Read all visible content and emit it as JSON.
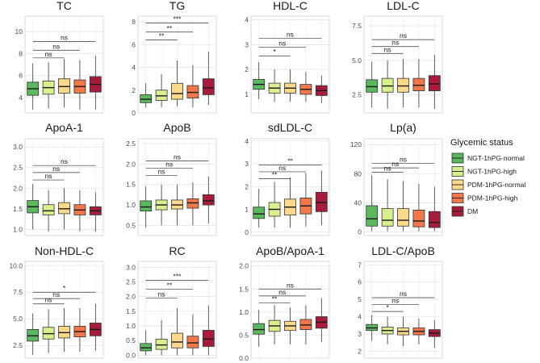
{
  "legend": {
    "title": "Glycemic status",
    "items": [
      {
        "label": "NGT-1hPG-normal",
        "color": "#5BB85F"
      },
      {
        "label": "NGT-1hPG-high",
        "color": "#D9EE8C"
      },
      {
        "label": "PDM-1hPG-normal",
        "color": "#FDD98A"
      },
      {
        "label": "PDM-1hPG-high",
        "color": "#F2774A"
      },
      {
        "label": "DM",
        "color": "#A61C3C"
      }
    ]
  },
  "chart_data": [
    {
      "type": "box",
      "title": "TC",
      "ylim": [
        2.6,
        11.4
      ],
      "ticks": [
        4,
        6,
        8,
        10
      ],
      "tick_labels": [
        "4",
        "6",
        "8",
        "10"
      ],
      "boxes": [
        {
          "group": "NGT-1hPG-normal",
          "low": 2.9,
          "q1": 4.2,
          "median": 4.8,
          "q3": 5.4,
          "high": 7.1
        },
        {
          "group": "NGT-1hPG-high",
          "low": 3.0,
          "q1": 4.3,
          "median": 4.9,
          "q3": 5.5,
          "high": 7.2
        },
        {
          "group": "PDM-1hPG-normal",
          "low": 3.1,
          "q1": 4.4,
          "median": 5.0,
          "q3": 5.7,
          "high": 7.5
        },
        {
          "group": "PDM-1hPG-high",
          "low": 2.9,
          "q1": 4.4,
          "median": 5.0,
          "q3": 5.6,
          "high": 7.4
        },
        {
          "group": "DM",
          "low": 2.9,
          "q1": 4.5,
          "median": 5.2,
          "q3": 5.9,
          "high": 7.8
        }
      ],
      "comparisons": [
        {
          "from": 1,
          "to": 2,
          "label": "ns",
          "y": 7.6
        },
        {
          "from": 1,
          "to": 3,
          "label": "ns",
          "y": 8.3
        },
        {
          "from": 1,
          "to": 4,
          "label": "ns",
          "y": 9.1
        }
      ]
    },
    {
      "type": "box",
      "title": "TG",
      "ylim": [
        0,
        8.5
      ],
      "ticks": [
        0,
        2,
        4,
        6,
        8
      ],
      "tick_labels": [
        "0",
        "2",
        "4",
        "6",
        "8"
      ],
      "boxes": [
        {
          "group": "NGT-1hPG-normal",
          "low": 0.5,
          "q1": 0.9,
          "median": 1.2,
          "q3": 1.6,
          "high": 2.6
        },
        {
          "group": "NGT-1hPG-high",
          "low": 0.5,
          "q1": 1.1,
          "median": 1.5,
          "q3": 2.0,
          "high": 3.4
        },
        {
          "group": "PDM-1hPG-normal",
          "low": 0.6,
          "q1": 1.2,
          "median": 1.7,
          "q3": 2.6,
          "high": 4.6
        },
        {
          "group": "PDM-1hPG-high",
          "low": 0.5,
          "q1": 1.3,
          "median": 1.8,
          "q3": 2.4,
          "high": 4.2
        },
        {
          "group": "DM",
          "low": 0.7,
          "q1": 1.6,
          "median": 2.2,
          "q3": 3.0,
          "high": 5.4
        }
      ],
      "comparisons": [
        {
          "from": 1,
          "to": 2,
          "label": "**",
          "y": 6.4
        },
        {
          "from": 1,
          "to": 3,
          "label": "**",
          "y": 7.1
        },
        {
          "from": 1,
          "to": 4,
          "label": "***",
          "y": 7.9
        }
      ]
    },
    {
      "type": "box",
      "title": "HDL-C",
      "ylim": [
        0.25,
        4.15
      ],
      "ticks": [
        1,
        2,
        3,
        4
      ],
      "tick_labels": [
        "1",
        "2",
        "3",
        "4"
      ],
      "boxes": [
        {
          "group": "NGT-1hPG-normal",
          "low": 0.8,
          "q1": 1.2,
          "median": 1.4,
          "q3": 1.6,
          "high": 2.3
        },
        {
          "group": "NGT-1hPG-high",
          "low": 0.7,
          "q1": 1.05,
          "median": 1.25,
          "q3": 1.45,
          "high": 2.0
        },
        {
          "group": "PDM-1hPG-normal",
          "low": 0.7,
          "q1": 1.05,
          "median": 1.25,
          "q3": 1.45,
          "high": 2.0
        },
        {
          "group": "PDM-1hPG-high",
          "low": 0.7,
          "q1": 1.0,
          "median": 1.2,
          "q3": 1.4,
          "high": 1.9
        },
        {
          "group": "DM",
          "low": 0.65,
          "q1": 0.95,
          "median": 1.15,
          "q3": 1.35,
          "high": 1.75
        }
      ],
      "comparisons": [
        {
          "from": 1,
          "to": 2,
          "label": "*",
          "y": 2.55
        },
        {
          "from": 1,
          "to": 3,
          "label": "ns",
          "y": 2.9
        },
        {
          "from": 1,
          "to": 4,
          "label": "ns",
          "y": 3.25
        }
      ]
    },
    {
      "type": "box",
      "title": "LDL-C",
      "ylim": [
        1.2,
        8.2
      ],
      "ticks": [
        2.5,
        5.0,
        7.5
      ],
      "tick_labels": [
        "2.5",
        "5.0",
        "7.5"
      ],
      "boxes": [
        {
          "group": "NGT-1hPG-normal",
          "low": 1.6,
          "q1": 2.7,
          "median": 3.1,
          "q3": 3.6,
          "high": 4.9
        },
        {
          "group": "NGT-1hPG-high",
          "low": 1.5,
          "q1": 2.7,
          "median": 3.15,
          "q3": 3.7,
          "high": 5.0
        },
        {
          "group": "PDM-1hPG-normal",
          "low": 1.6,
          "q1": 2.7,
          "median": 3.15,
          "q3": 3.7,
          "high": 5.1
        },
        {
          "group": "PDM-1hPG-high",
          "low": 1.6,
          "q1": 2.8,
          "median": 3.2,
          "q3": 3.7,
          "high": 5.1
        },
        {
          "group": "DM",
          "low": 1.5,
          "q1": 2.8,
          "median": 3.3,
          "q3": 3.9,
          "high": 5.4
        }
      ],
      "comparisons": [
        {
          "from": 1,
          "to": 2,
          "label": "ns",
          "y": 5.5
        },
        {
          "from": 1,
          "to": 3,
          "label": "ns",
          "y": 6.0
        },
        {
          "from": 1,
          "to": 4,
          "label": "ns",
          "y": 6.5
        }
      ]
    },
    {
      "type": "box",
      "title": "ApoA-1",
      "ylim": [
        0.85,
        3.2
      ],
      "ticks": [
        1.0,
        1.5,
        2.0,
        2.5,
        3.0
      ],
      "tick_labels": [
        "1.0",
        "1.5",
        "2.0",
        "2.5",
        "3.0"
      ],
      "boxes": [
        {
          "group": "NGT-1hPG-normal",
          "low": 1.0,
          "q1": 1.4,
          "median": 1.55,
          "q3": 1.7,
          "high": 2.1
        },
        {
          "group": "NGT-1hPG-high",
          "low": 0.95,
          "q1": 1.35,
          "median": 1.45,
          "q3": 1.6,
          "high": 1.95
        },
        {
          "group": "PDM-1hPG-normal",
          "low": 1.0,
          "q1": 1.38,
          "median": 1.5,
          "q3": 1.65,
          "high": 2.0
        },
        {
          "group": "PDM-1hPG-high",
          "low": 0.95,
          "q1": 1.35,
          "median": 1.47,
          "q3": 1.6,
          "high": 1.95
        },
        {
          "group": "DM",
          "low": 0.95,
          "q1": 1.35,
          "median": 1.45,
          "q3": 1.55,
          "high": 1.9
        }
      ],
      "comparisons": [
        {
          "from": 1,
          "to": 2,
          "label": "ns",
          "y": 2.2
        },
        {
          "from": 1,
          "to": 3,
          "label": "ns",
          "y": 2.38
        },
        {
          "from": 1,
          "to": 4,
          "label": "ns",
          "y": 2.55
        }
      ]
    },
    {
      "type": "box",
      "title": "ApoB",
      "ylim": [
        0.25,
        2.62
      ],
      "ticks": [
        0.5,
        1.0,
        1.5,
        2.0,
        2.5
      ],
      "tick_labels": [
        "0.5",
        "1.0",
        "1.5",
        "2.0",
        "2.5"
      ],
      "boxes": [
        {
          "group": "NGT-1hPG-normal",
          "low": 0.45,
          "q1": 0.85,
          "median": 0.95,
          "q3": 1.1,
          "high": 1.45
        },
        {
          "group": "NGT-1hPG-high",
          "low": 0.5,
          "q1": 0.88,
          "median": 1.0,
          "q3": 1.12,
          "high": 1.5
        },
        {
          "group": "PDM-1hPG-normal",
          "low": 0.5,
          "q1": 0.9,
          "median": 1.0,
          "q3": 1.12,
          "high": 1.5
        },
        {
          "group": "PDM-1hPG-high",
          "low": 0.5,
          "q1": 0.92,
          "median": 1.05,
          "q3": 1.15,
          "high": 1.55
        },
        {
          "group": "DM",
          "low": 0.55,
          "q1": 1.0,
          "median": 1.1,
          "q3": 1.25,
          "high": 1.7
        }
      ],
      "comparisons": [
        {
          "from": 1,
          "to": 2,
          "label": "ns",
          "y": 1.72
        },
        {
          "from": 1,
          "to": 3,
          "label": "ns",
          "y": 1.9
        },
        {
          "from": 1,
          "to": 4,
          "label": "ns",
          "y": 2.08
        }
      ]
    },
    {
      "type": "box",
      "title": "sdLDL-C",
      "ylim": [
        -0.15,
        4.1
      ],
      "ticks": [
        0,
        1,
        2,
        3,
        4
      ],
      "tick_labels": [
        "0",
        "1",
        "2",
        "3",
        "4"
      ],
      "boxes": [
        {
          "group": "NGT-1hPG-normal",
          "low": 0.2,
          "q1": 0.6,
          "median": 0.8,
          "q3": 1.1,
          "high": 1.9
        },
        {
          "group": "NGT-1hPG-high",
          "low": 0.2,
          "q1": 0.7,
          "median": 1.0,
          "q3": 1.3,
          "high": 2.2
        },
        {
          "group": "PDM-1hPG-normal",
          "low": 0.2,
          "q1": 0.75,
          "median": 1.1,
          "q3": 1.45,
          "high": 2.4
        },
        {
          "group": "PDM-1hPG-high",
          "low": 0.25,
          "q1": 0.8,
          "median": 1.15,
          "q3": 1.5,
          "high": 2.6
        },
        {
          "group": "DM",
          "low": 0.3,
          "q1": 0.9,
          "median": 1.3,
          "q3": 1.75,
          "high": 2.7
        }
      ],
      "comparisons": [
        {
          "from": 1,
          "to": 2,
          "label": "**",
          "y": 2.35
        },
        {
          "from": 1,
          "to": 3,
          "label": "ns",
          "y": 2.65
        },
        {
          "from": 1,
          "to": 4,
          "label": "**",
          "y": 2.95
        }
      ]
    },
    {
      "type": "box",
      "title": "Lp(a)",
      "ylim": [
        -5,
        128
      ],
      "ticks": [
        0,
        40,
        80,
        120
      ],
      "tick_labels": [
        "0",
        "40",
        "80",
        "120"
      ],
      "boxes": [
        {
          "group": "NGT-1hPG-normal",
          "low": 1,
          "q1": 8,
          "median": 18,
          "q3": 36,
          "high": 78
        },
        {
          "group": "NGT-1hPG-high",
          "low": 1,
          "q1": 8,
          "median": 16,
          "q3": 32,
          "high": 72
        },
        {
          "group": "PDM-1hPG-normal",
          "low": 1,
          "q1": 8,
          "median": 16,
          "q3": 32,
          "high": 70
        },
        {
          "group": "PDM-1hPG-high",
          "low": 1,
          "q1": 7,
          "median": 15,
          "q3": 30,
          "high": 66
        },
        {
          "group": "DM",
          "low": 1,
          "q1": 6,
          "median": 13,
          "q3": 28,
          "high": 62
        }
      ],
      "comparisons": [
        {
          "from": 1,
          "to": 2,
          "label": "ns",
          "y": 82
        },
        {
          "from": 1,
          "to": 3,
          "label": "ns",
          "y": 88
        },
        {
          "from": 1,
          "to": 4,
          "label": "ns",
          "y": 94
        }
      ]
    },
    {
      "type": "box",
      "title": "Non-HDL-C",
      "ylim": [
        1.3,
        10.4
      ],
      "ticks": [
        2.5,
        5.0,
        7.5,
        10.0
      ],
      "tick_labels": [
        "2.5",
        "5.0",
        "7.5",
        "10.0"
      ],
      "boxes": [
        {
          "group": "NGT-1hPG-normal",
          "low": 1.6,
          "q1": 2.9,
          "median": 3.4,
          "q3": 4.0,
          "high": 5.5
        },
        {
          "group": "NGT-1hPG-high",
          "low": 1.8,
          "q1": 3.1,
          "median": 3.6,
          "q3": 4.2,
          "high": 5.9
        },
        {
          "group": "PDM-1hPG-normal",
          "low": 1.9,
          "q1": 3.2,
          "median": 3.7,
          "q3": 4.3,
          "high": 6.0
        },
        {
          "group": "PDM-1hPG-high",
          "low": 1.9,
          "q1": 3.3,
          "median": 3.8,
          "q3": 4.3,
          "high": 6.0
        },
        {
          "group": "DM",
          "low": 2.0,
          "q1": 3.4,
          "median": 4.0,
          "q3": 4.6,
          "high": 6.4
        }
      ],
      "comparisons": [
        {
          "from": 1,
          "to": 2,
          "label": "ns",
          "y": 6.4
        },
        {
          "from": 1,
          "to": 3,
          "label": "ns",
          "y": 6.9
        },
        {
          "from": 1,
          "to": 4,
          "label": "*",
          "y": 7.5
        }
      ]
    },
    {
      "type": "box",
      "title": "RC",
      "ylim": [
        -0.1,
        3.2
      ],
      "ticks": [
        0.0,
        0.5,
        1.0,
        1.5,
        2.0,
        2.5,
        3.0
      ],
      "tick_labels": [
        "0.0",
        "0.5",
        "1.0",
        "1.5",
        "2.0",
        "2.5",
        "3.0"
      ],
      "boxes": [
        {
          "group": "NGT-1hPG-normal",
          "low": 0.0,
          "q1": 0.15,
          "median": 0.25,
          "q3": 0.4,
          "high": 0.85
        },
        {
          "group": "NGT-1hPG-high",
          "low": 0.0,
          "q1": 0.2,
          "median": 0.35,
          "q3": 0.55,
          "high": 1.2
        },
        {
          "group": "PDM-1hPG-normal",
          "low": 0.0,
          "q1": 0.25,
          "median": 0.45,
          "q3": 0.75,
          "high": 1.6
        },
        {
          "group": "PDM-1hPG-high",
          "low": 0.0,
          "q1": 0.25,
          "median": 0.42,
          "q3": 0.65,
          "high": 1.4
        },
        {
          "group": "DM",
          "low": 0.0,
          "q1": 0.3,
          "median": 0.55,
          "q3": 0.85,
          "high": 1.7
        }
      ],
      "comparisons": [
        {
          "from": 1,
          "to": 2,
          "label": "ns",
          "y": 1.95
        },
        {
          "from": 1,
          "to": 3,
          "label": "**",
          "y": 2.25
        },
        {
          "from": 1,
          "to": 4,
          "label": "***",
          "y": 2.55
        }
      ]
    },
    {
      "type": "box",
      "title": "ApoB/ApoA-1",
      "ylim": [
        0.0,
        2.1
      ],
      "ticks": [
        0.0,
        0.5,
        1.0,
        1.5,
        2.0
      ],
      "tick_labels": [
        "0.0",
        "0.5",
        "1.0",
        "1.5",
        "2.0"
      ],
      "boxes": [
        {
          "group": "NGT-1hPG-normal",
          "low": 0.25,
          "q1": 0.52,
          "median": 0.62,
          "q3": 0.75,
          "high": 1.05
        },
        {
          "group": "NGT-1hPG-high",
          "low": 0.3,
          "q1": 0.58,
          "median": 0.7,
          "q3": 0.82,
          "high": 1.15
        },
        {
          "group": "PDM-1hPG-normal",
          "low": 0.3,
          "q1": 0.6,
          "median": 0.7,
          "q3": 0.8,
          "high": 1.1
        },
        {
          "group": "PDM-1hPG-high",
          "low": 0.3,
          "q1": 0.62,
          "median": 0.72,
          "q3": 0.84,
          "high": 1.15
        },
        {
          "group": "DM",
          "low": 0.35,
          "q1": 0.65,
          "median": 0.78,
          "q3": 0.9,
          "high": 1.3
        }
      ],
      "comparisons": [
        {
          "from": 1,
          "to": 2,
          "label": "**",
          "y": 1.2
        },
        {
          "from": 1,
          "to": 3,
          "label": "ns",
          "y": 1.35
        },
        {
          "from": 1,
          "to": 4,
          "label": "ns",
          "y": 1.5
        }
      ]
    },
    {
      "type": "box",
      "title": "LDL-C/ApoB",
      "ylim": [
        1.6,
        7.2
      ],
      "ticks": [
        2,
        3,
        4,
        5,
        6,
        7
      ],
      "tick_labels": [
        "2",
        "3",
        "4",
        "5",
        "6",
        "7"
      ],
      "boxes": [
        {
          "group": "NGT-1hPG-normal",
          "low": 2.6,
          "q1": 3.2,
          "median": 3.35,
          "q3": 3.55,
          "high": 4.1
        },
        {
          "group": "NGT-1hPG-high",
          "low": 2.4,
          "q1": 3.0,
          "median": 3.2,
          "q3": 3.4,
          "high": 4.0
        },
        {
          "group": "PDM-1hPG-normal",
          "low": 2.3,
          "q1": 2.95,
          "median": 3.15,
          "q3": 3.35,
          "high": 4.0
        },
        {
          "group": "PDM-1hPG-high",
          "low": 2.4,
          "q1": 2.95,
          "median": 3.15,
          "q3": 3.35,
          "high": 3.9
        },
        {
          "group": "DM",
          "low": 2.2,
          "q1": 2.85,
          "median": 3.05,
          "q3": 3.25,
          "high": 3.8
        }
      ],
      "comparisons": [
        {
          "from": 1,
          "to": 2,
          "label": "*",
          "y": 4.3
        },
        {
          "from": 1,
          "to": 3,
          "label": "ns",
          "y": 4.7
        },
        {
          "from": 1,
          "to": 4,
          "label": "ns",
          "y": 5.1
        }
      ]
    }
  ]
}
